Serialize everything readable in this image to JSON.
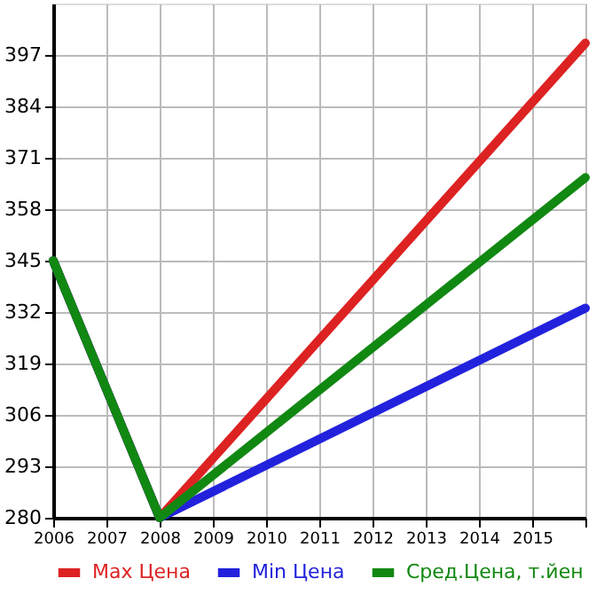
{
  "chart_data": {
    "type": "line",
    "x": [
      2006,
      2008,
      2016
    ],
    "series": [
      {
        "name": "Max Цена",
        "color": "#dd2222",
        "values": [
          345,
          280,
          400
        ]
      },
      {
        "name": "Min Цена",
        "color": "#2222dd",
        "values": [
          345,
          280,
          333
        ]
      },
      {
        "name": "Сред.Цена, т.йен",
        "color": "#118811",
        "values": [
          345,
          280,
          366
        ]
      }
    ],
    "xlim": [
      2006,
      2016
    ],
    "xticks": [
      2006,
      2007,
      2008,
      2009,
      2010,
      2011,
      2012,
      2013,
      2014,
      2015,
      {
        "value": 2016,
        "label": null
      }
    ],
    "ylim": [
      280,
      410
    ],
    "yticks": [
      280,
      293,
      306,
      319,
      332,
      345,
      358,
      371,
      384,
      397
    ],
    "grid": true,
    "legend": "bottom",
    "marker": "none",
    "line_style": "solid"
  }
}
